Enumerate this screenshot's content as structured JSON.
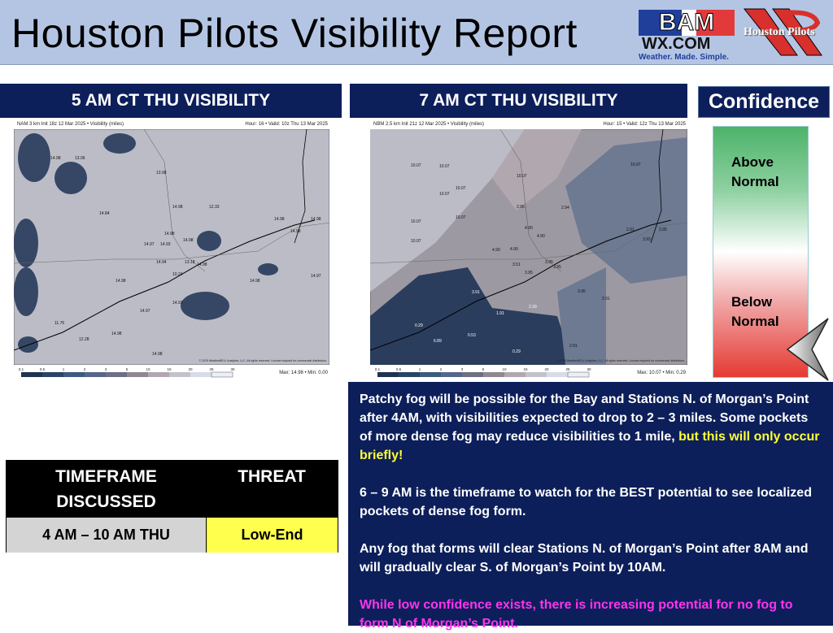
{
  "header": {
    "title": "Houston Pilots Visibility Report",
    "logo_bam": "BAM WX.COM",
    "logo_bam_tagline": "Weather. Made. Simple.",
    "logo_pilots": "Houston Pilots"
  },
  "left_map": {
    "heading": "5 AM CT THU VISIBILITY",
    "caption_left": "NAM 3 km Init 18z 12 Mar 2025 • Visibility (miles)",
    "caption_right": "Hour: 16 • Valid: 10z Thu 13 Mar 2025",
    "max_min": "Max: 14.98 • Min: 0.00",
    "labels": [
      "14.98",
      "13.06",
      "13.98",
      "14.98",
      "12.33",
      "14.84",
      "14.98",
      "14.98",
      "14.98",
      "14.98",
      "14.98",
      "14.97",
      "14.93",
      "14.94",
      "13.18",
      "14.98",
      "10.24",
      "14.98",
      "14.98",
      "14.97",
      "14.93",
      "14.97",
      "11.76",
      "12.28",
      "14.98",
      "14.98"
    ]
  },
  "right_map": {
    "heading": "7 AM CT THU VISIBILITY",
    "caption_left": "NBM 2.5 km Init 21z 12 Mar 2025 • Visibility (miles)",
    "caption_right": "Hour: 15 • Valid: 12z Thu 13 Mar 2025",
    "max_min": "Max: 10.07 • Min: 0.29",
    "labels": [
      "10.07",
      "10.07",
      "10.07",
      "10.07",
      "10.07",
      "10.07",
      "10.07",
      "10.07",
      "10.07",
      "2.94",
      "2.95",
      "4.90",
      "4.90",
      "4.90",
      "4.90",
      "2.91",
      "3.95",
      "3.93",
      "3.51",
      "3.95",
      "3.95",
      "3.95",
      "3.95",
      "3.91",
      "2.39",
      "1.91",
      "2.91",
      "0.29",
      "0.53",
      "6.89",
      "0.29",
      "2.91"
    ]
  },
  "scale_ticks": [
    "0.1",
    "0.5",
    "1",
    "2",
    "3",
    "5",
    "10",
    "15",
    "20",
    "25",
    "30"
  ],
  "scale_colors": [
    "#1f3350",
    "#2a4468",
    "#3d5a80",
    "#55678a",
    "#6e6f85",
    "#8f8791",
    "#b0a8ae",
    "#c2c2cc",
    "#d6dcea",
    "#eceff6",
    "#ffffff"
  ],
  "copyright": "© 2025 WeatherBELL Analytics, LLC. All rights reserved. License required for commercial distribution.",
  "confidence": {
    "heading": "Confidence",
    "above": "Above Normal",
    "below": "Below Normal",
    "level": "below-normal"
  },
  "table": {
    "col1": "TIMEFRAME DISCUSSED",
    "col2": "THREAT",
    "timeframe": "4 AM – 10 AM THU",
    "threat": "Low-End",
    "threat_color": "#ffff4d"
  },
  "panel": {
    "p1_a": "Patchy fog will be possible for the Bay and Stations N. of Morgan’s Point after 4AM, with visibilities expected to drop to 2 – 3 miles.  Some pockets of more dense fog may reduce visibilities to 1 mile, ",
    "p1_b": "but this will only occur briefly!",
    "p2": "6 – 9 AM is the timeframe to watch for the BEST potential to see localized pockets of dense fog form.",
    "p3": "Any fog that forms will clear Stations N. of Morgan’s Point after 8AM and will gradually clear S. of Morgan’s Point by 10AM.",
    "p4": "While low confidence exists, there is increasing potential for no fog to form N of Morgan’s Point."
  }
}
